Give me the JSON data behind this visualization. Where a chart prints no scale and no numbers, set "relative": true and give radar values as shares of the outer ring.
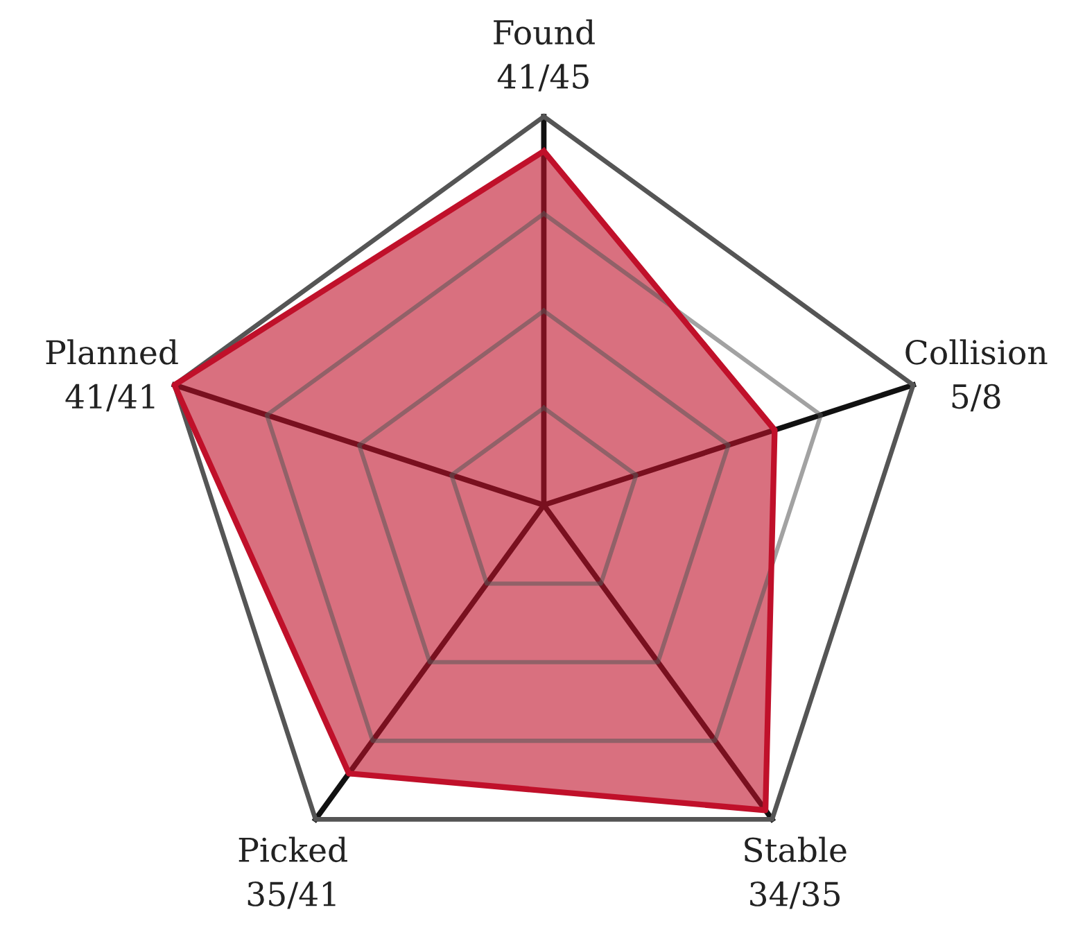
{
  "chart_data": {
    "type": "radar",
    "relative": true,
    "grid": true,
    "categories": [
      "Found\n41/45",
      "Collision\n5/8",
      "Stable\n34/35",
      "Picked\n35/41",
      "Planned\n41/41"
    ],
    "series": [
      {
        "color": "#c0102a",
        "values": [
          0.911,
          0.625,
          0.971,
          0.854,
          1.0
        ]
      }
    ]
  }
}
